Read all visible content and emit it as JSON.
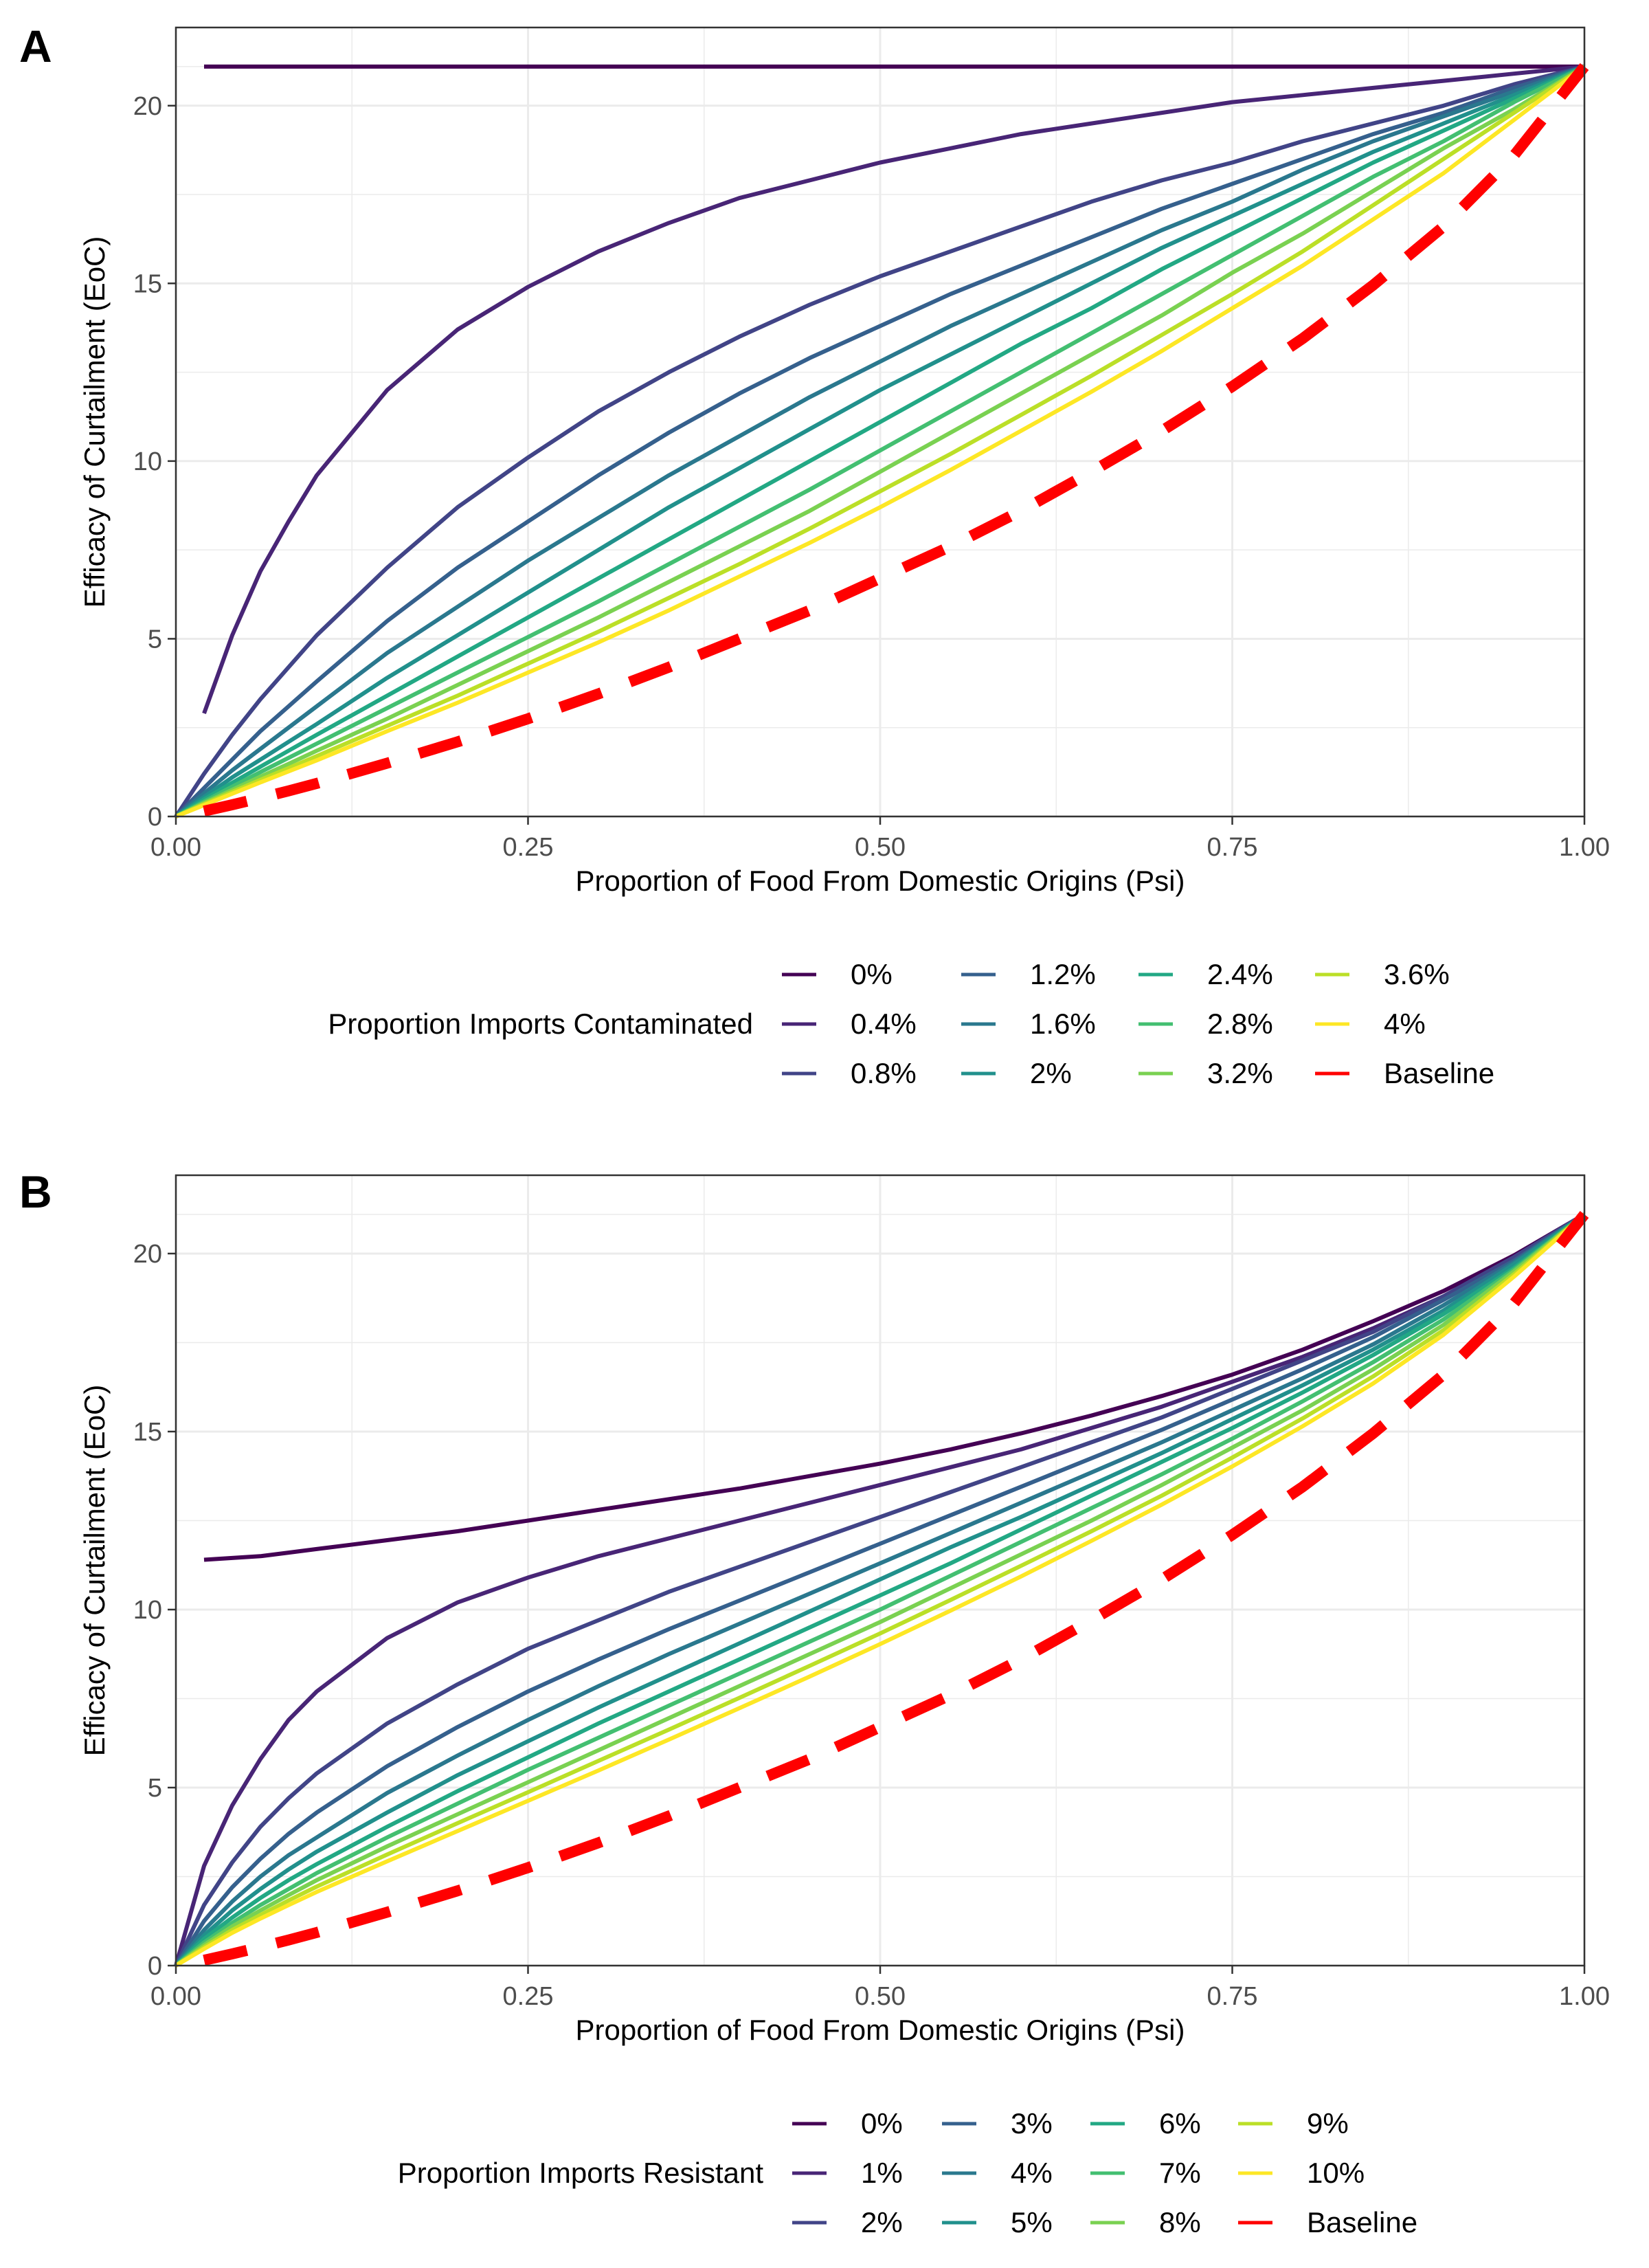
{
  "panels": [
    {
      "label": "A",
      "legend": {
        "title": "Proportion Imports Contaminated"
      }
    },
    {
      "label": "B",
      "legend": {
        "title": "Proportion Imports Resistant"
      }
    }
  ],
  "colors": {
    "series": [
      "#440154",
      "#482576",
      "#414487",
      "#35608D",
      "#2A788E",
      "#21908C",
      "#22A884",
      "#43BF71",
      "#7AD151",
      "#BBDF27",
      "#FDE725"
    ],
    "baseline": "#FF0000",
    "grid": "#EBEBEB",
    "axis": "#333333"
  },
  "chart_data": [
    {
      "type": "line",
      "panel": "A",
      "xlabel": "Proportion of Food From Domestic Origins (Psi)",
      "ylabel": "Efficacy of Curtailment (EoC)",
      "xlim": [
        0,
        1
      ],
      "ylim": [
        0,
        22.2
      ],
      "xticks": [
        "0.00",
        "0.25",
        "0.50",
        "0.75",
        "1.00"
      ],
      "yticks": [
        "0",
        "5",
        "10",
        "15",
        "20"
      ],
      "grid": true,
      "legend_position": "bottom",
      "legend_title": "Proportion Imports Contaminated",
      "x": [
        0,
        0.02,
        0.04,
        0.06,
        0.08,
        0.1,
        0.15,
        0.2,
        0.25,
        0.3,
        0.35,
        0.4,
        0.45,
        0.5,
        0.55,
        0.6,
        0.65,
        0.7,
        0.75,
        0.8,
        0.85,
        0.9,
        0.95,
        1.0
      ],
      "series": [
        {
          "name": "0%",
          "values": [
            null,
            21.1,
            21.1,
            21.1,
            21.1,
            21.1,
            21.1,
            21.1,
            21.1,
            21.1,
            21.1,
            21.1,
            21.1,
            21.1,
            21.1,
            21.1,
            21.1,
            21.1,
            21.1,
            21.1,
            21.1,
            21.1,
            21.1,
            21.1
          ]
        },
        {
          "name": "0.4%",
          "values": [
            null,
            2.9,
            5.1,
            6.9,
            8.3,
            9.6,
            12.0,
            13.7,
            14.9,
            15.9,
            16.7,
            17.4,
            17.9,
            18.4,
            18.8,
            19.2,
            19.5,
            19.8,
            20.1,
            20.3,
            20.5,
            20.7,
            20.9,
            21.1
          ]
        },
        {
          "name": "0.8%",
          "values": [
            0,
            1.2,
            2.3,
            3.3,
            4.2,
            5.1,
            7.0,
            8.7,
            10.1,
            11.4,
            12.5,
            13.5,
            14.4,
            15.2,
            15.9,
            16.6,
            17.3,
            17.9,
            18.4,
            19.0,
            19.5,
            20.0,
            20.6,
            21.1
          ]
        },
        {
          "name": "1.2%",
          "values": [
            0,
            0.8,
            1.6,
            2.4,
            3.1,
            3.8,
            5.5,
            7.0,
            8.3,
            9.6,
            10.8,
            11.9,
            12.9,
            13.8,
            14.7,
            15.5,
            16.3,
            17.1,
            17.8,
            18.5,
            19.2,
            19.8,
            20.5,
            21.1
          ]
        },
        {
          "name": "1.6%",
          "values": [
            0,
            0.65,
            1.3,
            1.9,
            2.5,
            3.1,
            4.6,
            5.9,
            7.2,
            8.4,
            9.6,
            10.7,
            11.8,
            12.8,
            13.8,
            14.7,
            15.6,
            16.5,
            17.3,
            18.2,
            19.0,
            19.7,
            20.4,
            21.1
          ]
        },
        {
          "name": "2%",
          "values": [
            0,
            0.55,
            1.1,
            1.6,
            2.1,
            2.6,
            3.9,
            5.1,
            6.3,
            7.5,
            8.7,
            9.8,
            10.9,
            12.0,
            13.0,
            14.0,
            15.0,
            16.0,
            16.9,
            17.8,
            18.7,
            19.5,
            20.3,
            21.1
          ]
        },
        {
          "name": "2.4%",
          "values": [
            0,
            0.48,
            0.95,
            1.4,
            1.85,
            2.3,
            3.4,
            4.5,
            5.6,
            6.7,
            7.8,
            8.9,
            10.0,
            11.1,
            12.2,
            13.3,
            14.3,
            15.4,
            16.4,
            17.4,
            18.4,
            19.3,
            20.2,
            21.1
          ]
        },
        {
          "name": "2.8%",
          "values": [
            0,
            0.42,
            0.84,
            1.25,
            1.65,
            2.05,
            3.05,
            4.05,
            5.05,
            6.05,
            7.1,
            8.15,
            9.2,
            10.3,
            11.4,
            12.5,
            13.6,
            14.7,
            15.8,
            16.9,
            18.0,
            19.0,
            20.1,
            21.1
          ]
        },
        {
          "name": "3.2%",
          "values": [
            0,
            0.38,
            0.75,
            1.12,
            1.48,
            1.85,
            2.75,
            3.7,
            4.65,
            5.6,
            6.6,
            7.6,
            8.6,
            9.7,
            10.8,
            11.9,
            13.0,
            14.1,
            15.3,
            16.4,
            17.6,
            18.8,
            19.9,
            21.1
          ]
        },
        {
          "name": "3.6%",
          "values": [
            0,
            0.35,
            0.69,
            1.03,
            1.36,
            1.7,
            2.55,
            3.4,
            4.3,
            5.2,
            6.15,
            7.1,
            8.1,
            9.15,
            10.2,
            11.3,
            12.4,
            13.55,
            14.7,
            15.9,
            17.2,
            18.5,
            19.8,
            21.1
          ]
        },
        {
          "name": "4%",
          "values": [
            0,
            0.32,
            0.64,
            0.96,
            1.27,
            1.58,
            2.4,
            3.2,
            4.05,
            4.9,
            5.8,
            6.75,
            7.7,
            8.7,
            9.75,
            10.85,
            11.95,
            13.1,
            14.3,
            15.5,
            16.8,
            18.1,
            19.6,
            21.1
          ]
        },
        {
          "name": "Baseline",
          "dashed": true,
          "values": [
            null,
            0.15,
            0.33,
            0.52,
            0.72,
            0.93,
            1.5,
            2.1,
            2.75,
            3.45,
            4.2,
            5.0,
            5.8,
            6.7,
            7.6,
            8.6,
            9.7,
            10.85,
            12.1,
            13.45,
            14.95,
            16.6,
            18.6,
            21.1
          ]
        }
      ]
    },
    {
      "type": "line",
      "panel": "B",
      "xlabel": "Proportion of Food From Domestic Origins (Psi)",
      "ylabel": "Efficacy of Curtailment (EoC)",
      "xlim": [
        0,
        1
      ],
      "ylim": [
        0,
        22.2
      ],
      "xticks": [
        "0.00",
        "0.25",
        "0.50",
        "0.75",
        "1.00"
      ],
      "yticks": [
        "0",
        "5",
        "10",
        "15",
        "20"
      ],
      "grid": true,
      "legend_position": "bottom",
      "legend_title": "Proportion Imports Resistant",
      "x": [
        0,
        0.02,
        0.04,
        0.06,
        0.08,
        0.1,
        0.15,
        0.2,
        0.25,
        0.3,
        0.35,
        0.4,
        0.45,
        0.5,
        0.55,
        0.6,
        0.65,
        0.7,
        0.75,
        0.8,
        0.85,
        0.9,
        0.95,
        1.0
      ],
      "series": [
        {
          "name": "0%",
          "values": [
            null,
            11.4,
            11.45,
            11.5,
            11.6,
            11.7,
            11.95,
            12.2,
            12.5,
            12.8,
            13.1,
            13.4,
            13.75,
            14.1,
            14.5,
            14.95,
            15.45,
            16.0,
            16.6,
            17.3,
            18.1,
            18.95,
            19.95,
            21.1
          ]
        },
        {
          "name": "1%",
          "values": [
            0,
            2.8,
            4.5,
            5.8,
            6.9,
            7.7,
            9.2,
            10.2,
            10.9,
            11.5,
            12.0,
            12.5,
            13.0,
            13.5,
            14.0,
            14.5,
            15.1,
            15.7,
            16.4,
            17.1,
            17.9,
            18.8,
            19.9,
            21.1
          ]
        },
        {
          "name": "2%",
          "values": [
            0,
            1.7,
            2.9,
            3.9,
            4.7,
            5.4,
            6.8,
            7.9,
            8.9,
            9.7,
            10.5,
            11.2,
            11.9,
            12.6,
            13.3,
            14.0,
            14.7,
            15.4,
            16.2,
            17.0,
            17.8,
            18.8,
            19.9,
            21.1
          ]
        },
        {
          "name": "3%",
          "values": [
            0,
            1.25,
            2.2,
            3.0,
            3.7,
            4.3,
            5.6,
            6.7,
            7.7,
            8.6,
            9.45,
            10.25,
            11.05,
            11.85,
            12.65,
            13.45,
            14.25,
            15.05,
            15.9,
            16.75,
            17.65,
            18.7,
            19.8,
            21.1
          ]
        },
        {
          "name": "4%",
          "values": [
            0,
            1.0,
            1.8,
            2.5,
            3.1,
            3.6,
            4.85,
            5.9,
            6.9,
            7.85,
            8.75,
            9.6,
            10.45,
            11.3,
            12.15,
            13.0,
            13.85,
            14.7,
            15.6,
            16.5,
            17.45,
            18.55,
            19.75,
            21.1
          ]
        },
        {
          "name": "5%",
          "values": [
            0,
            0.85,
            1.55,
            2.15,
            2.7,
            3.2,
            4.3,
            5.35,
            6.3,
            7.25,
            8.15,
            9.05,
            9.95,
            10.85,
            11.75,
            12.6,
            13.5,
            14.4,
            15.35,
            16.3,
            17.3,
            18.4,
            19.7,
            21.1
          ]
        },
        {
          "name": "6%",
          "values": [
            0,
            0.75,
            1.35,
            1.9,
            2.4,
            2.85,
            3.9,
            4.9,
            5.85,
            6.8,
            7.7,
            8.6,
            9.5,
            10.4,
            11.3,
            12.25,
            13.2,
            14.15,
            15.1,
            16.1,
            17.15,
            18.3,
            19.6,
            21.1
          ]
        },
        {
          "name": "7%",
          "values": [
            0,
            0.65,
            1.2,
            1.7,
            2.15,
            2.6,
            3.6,
            4.55,
            5.5,
            6.4,
            7.3,
            8.2,
            9.1,
            10.0,
            10.95,
            11.9,
            12.85,
            13.8,
            14.8,
            15.85,
            16.95,
            18.15,
            19.55,
            21.1
          ]
        },
        {
          "name": "8%",
          "values": [
            0,
            0.58,
            1.1,
            1.55,
            1.98,
            2.4,
            3.35,
            4.25,
            5.15,
            6.05,
            6.95,
            7.85,
            8.75,
            9.65,
            10.6,
            11.55,
            12.5,
            13.5,
            14.55,
            15.6,
            16.75,
            18.0,
            19.5,
            21.1
          ]
        },
        {
          "name": "9%",
          "values": [
            0,
            0.52,
            1.0,
            1.42,
            1.83,
            2.22,
            3.12,
            4.0,
            4.87,
            5.75,
            6.63,
            7.52,
            8.42,
            9.33,
            10.27,
            11.23,
            12.2,
            13.2,
            14.27,
            15.37,
            16.55,
            17.85,
            19.42,
            21.1
          ]
        },
        {
          "name": "10%",
          "values": [
            0,
            0.47,
            0.92,
            1.32,
            1.7,
            2.07,
            2.93,
            3.78,
            4.63,
            5.48,
            6.35,
            7.23,
            8.12,
            9.03,
            9.97,
            10.93,
            11.93,
            12.95,
            14.02,
            15.15,
            16.35,
            17.72,
            19.35,
            21.1
          ]
        },
        {
          "name": "Baseline",
          "dashed": true,
          "values": [
            null,
            0.15,
            0.33,
            0.52,
            0.72,
            0.93,
            1.5,
            2.1,
            2.75,
            3.45,
            4.2,
            5.0,
            5.8,
            6.7,
            7.6,
            8.6,
            9.7,
            10.85,
            12.1,
            13.45,
            14.95,
            16.6,
            18.6,
            21.1
          ]
        }
      ]
    }
  ]
}
